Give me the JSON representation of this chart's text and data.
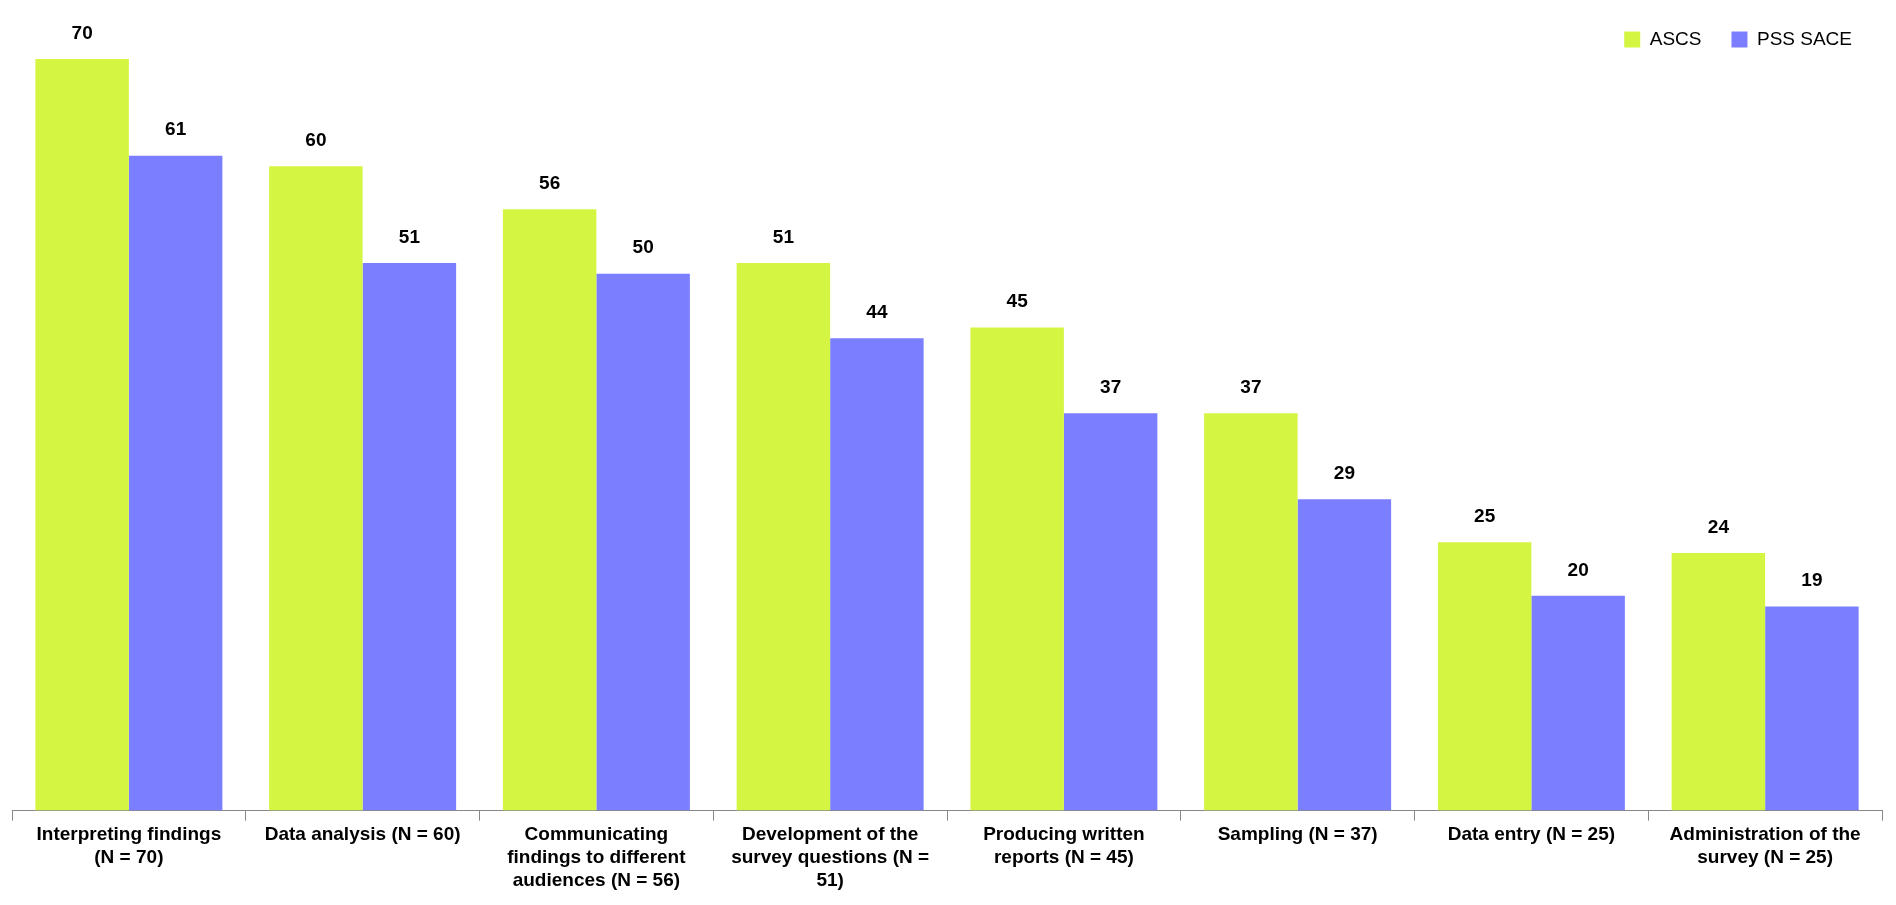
{
  "chart_data": {
    "type": "bar",
    "categories": [
      "Interpreting findings (N = 70)",
      "Data analysis (N = 60)",
      "Communicating findings to different audiences (N = 56)",
      "Development of the survey questions (N = 51)",
      "Producing written reports (N = 45)",
      "Sampling (N = 37)",
      "Data entry (N = 25)",
      "Administration of the survey (N = 25)"
    ],
    "series": [
      {
        "name": "ASCS",
        "color": "#d4f542",
        "values": [
          70,
          60,
          56,
          51,
          45,
          37,
          25,
          24
        ]
      },
      {
        "name": "PSS SACE",
        "color": "#7b7fff",
        "values": [
          61,
          51,
          50,
          44,
          37,
          29,
          20,
          19
        ]
      }
    ],
    "data_labels": true,
    "legend": "top right",
    "grid": false
  }
}
